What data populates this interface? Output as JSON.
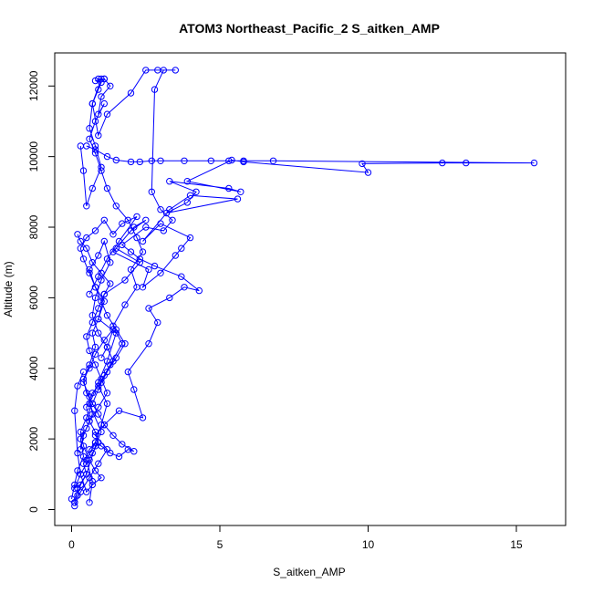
{
  "chart_data": {
    "type": "line",
    "title": "ATOM3 Northeast_Pacific_2 S_aitken_AMP",
    "xlabel": "S_aitken_AMP",
    "ylabel": "Altitude (m)",
    "xlim": [
      0,
      16
    ],
    "ylim": [
      0,
      12400
    ],
    "xticks": [
      0,
      5,
      10,
      15
    ],
    "yticks": [
      0,
      2000,
      4000,
      6000,
      8000,
      10000,
      12000
    ],
    "grid": false,
    "legend": "none",
    "color": "#0000ff",
    "series": [
      {
        "x": [
          0.1,
          0.2,
          0.5,
          0.8,
          1.0,
          0.6,
          0.9,
          1.2,
          1.5,
          0.9,
          1.1,
          1.8,
          2.3,
          1.5,
          2.1,
          2.5,
          2.0,
          1.4,
          2.6,
          2.4,
          3.0,
          3.5,
          3.7,
          4.0,
          3.0,
          2.4,
          3.3,
          4.0,
          5.6,
          3.2,
          3.9,
          4.2,
          3.3,
          5.3,
          5.7,
          3.9,
          5.4,
          5.8,
          10.0,
          9.8,
          12.5,
          13.3,
          15.6,
          6.8,
          5.8,
          5.3,
          4.7,
          3.8,
          3.0,
          2.7,
          2.3,
          2.0,
          1.5,
          1.2,
          0.8,
          0.5
        ],
        "y": [
          200,
          600,
          1000,
          1800,
          2200,
          3000,
          3600,
          4200,
          5000,
          5400,
          6100,
          6500,
          7000,
          7400,
          8000,
          8200,
          7900,
          7300,
          6800,
          6300,
          6700,
          7200,
          7400,
          7700,
          8100,
          7600,
          8500,
          8900,
          8800,
          8400,
          8700,
          9000,
          9300,
          9100,
          9000,
          9300,
          9900,
          9850,
          9550,
          9800,
          9820,
          9820,
          9820,
          9880,
          9880,
          9880,
          9880,
          9880,
          9880,
          9880,
          9850,
          9850,
          9900,
          10000,
          10200,
          10300
        ]
      },
      {
        "x": [
          0.1,
          0.3,
          0.6,
          0.9,
          1.2,
          0.8,
          1.1,
          1.6,
          2.4,
          2.1,
          1.9,
          2.6,
          2.9,
          2.6,
          3.3,
          3.8,
          4.3,
          3.7,
          2.8,
          2.3,
          2.0,
          1.7,
          2.5,
          3.1,
          3.4,
          3.0,
          2.7,
          2.8,
          3.1,
          3.5,
          2.9,
          2.5,
          2.0,
          1.2,
          0.9,
          0.7,
          1.0,
          1.1,
          0.9
        ],
        "y": [
          100,
          500,
          900,
          1300,
          1700,
          2100,
          2400,
          2800,
          2600,
          3400,
          3900,
          4700,
          5300,
          5700,
          6000,
          6300,
          6200,
          6600,
          6900,
          7100,
          7300,
          7500,
          8000,
          7900,
          8200,
          8500,
          9000,
          11900,
          12450,
          12450,
          12450,
          12450,
          11800,
          11200,
          10600,
          11500,
          12200,
          12200,
          12200
        ]
      },
      {
        "x": [
          0.6,
          0.7,
          0.5,
          0.8,
          1.0,
          1.2,
          0.9,
          1.3,
          1.7,
          1.4,
          1.8,
          2.2,
          2.0,
          2.4,
          2.2,
          1.9,
          1.5,
          1.2,
          1.0,
          0.8,
          0.6,
          0.8,
          1.1,
          0.9,
          1.0,
          1.3,
          1.1,
          0.8,
          1.0,
          0.9,
          0.7,
          0.6,
          0.8,
          1.0,
          0.7,
          0.5,
          0.4,
          0.3
        ],
        "y": [
          200,
          800,
          1400,
          1900,
          2400,
          3000,
          3500,
          4100,
          4700,
          5200,
          5800,
          6300,
          6800,
          7300,
          7700,
          8200,
          8600,
          9100,
          9600,
          10100,
          10500,
          11000,
          11500,
          11200,
          11700,
          12000,
          12200,
          12150,
          12100,
          11900,
          11500,
          10800,
          10300,
          9700,
          9100,
          8600,
          9600,
          10300
        ]
      },
      {
        "x": [
          0.0,
          0.1,
          0.2,
          0.4,
          0.3,
          0.5,
          0.7,
          0.6,
          0.4,
          0.6,
          0.8,
          0.7,
          0.9,
          1.1,
          0.8,
          0.6,
          0.9,
          1.1,
          1.3,
          1.0,
          0.8,
          0.7,
          0.9,
          1.2,
          1.4,
          1.1,
          0.9,
          0.7,
          0.5,
          0.3,
          0.4,
          0.6,
          0.8,
          1.0,
          0.7,
          0.5,
          0.3,
          0.2,
          0.1,
          0.2,
          0.4
        ],
        "y": [
          300,
          700,
          1100,
          1500,
          2000,
          2300,
          2700,
          3200,
          3600,
          4100,
          4600,
          5000,
          5400,
          5900,
          6300,
          6800,
          7200,
          7600,
          7000,
          6500,
          6000,
          5500,
          5000,
          4600,
          4200,
          3800,
          3400,
          3000,
          2600,
          2200,
          1800,
          1400,
          1100,
          900,
          700,
          500,
          1000,
          1600,
          2800,
          3500,
          3900
        ]
      },
      {
        "x": [
          0.1,
          0.3,
          0.5,
          0.7,
          0.9,
          0.8,
          0.6,
          0.5,
          0.7,
          1.0,
          1.2,
          1.5,
          1.8,
          1.5,
          1.2,
          1.0,
          0.8,
          0.6,
          0.4,
          0.3,
          0.5,
          0.8,
          1.1,
          1.4,
          1.7,
          2.2,
          1.6,
          1.2,
          0.9,
          0.6
        ],
        "y": [
          600,
          1000,
          1300,
          1600,
          1900,
          2200,
          2500,
          2900,
          3300,
          3600,
          3900,
          4300,
          4700,
          5100,
          5500,
          5900,
          6300,
          6700,
          7100,
          7400,
          7700,
          7900,
          8200,
          7800,
          8100,
          8300,
          7600,
          7100,
          6600,
          6100
        ]
      },
      {
        "x": [
          0.1,
          0.2,
          0.3,
          0.5,
          0.4,
          0.6,
          0.8,
          1.0,
          1.3,
          1.6,
          1.9,
          2.1,
          1.7,
          1.4,
          1.1,
          0.9,
          0.7,
          0.5,
          0.4,
          0.6,
          0.8,
          1.1,
          1.4,
          1.2,
          1.0
        ],
        "y": [
          200,
          400,
          700,
          1000,
          1300,
          1700,
          1900,
          1800,
          1600,
          1500,
          1700,
          1650,
          1850,
          2100,
          2400,
          2700,
          3000,
          3300,
          3700,
          4000,
          4400,
          4800,
          5100,
          4600,
          4300
        ]
      },
      {
        "x": [
          0.3,
          0.4,
          0.6,
          0.9,
          1.2,
          1.0,
          0.8,
          0.6,
          0.5,
          0.7,
          0.9,
          1.1,
          1.3,
          1.0,
          0.7,
          0.5,
          0.3,
          0.2
        ],
        "y": [
          1700,
          2100,
          2500,
          2900,
          3300,
          3700,
          4100,
          4500,
          4900,
          5300,
          5700,
          6100,
          6400,
          6700,
          7000,
          7400,
          7600,
          7800
        ]
      }
    ]
  }
}
